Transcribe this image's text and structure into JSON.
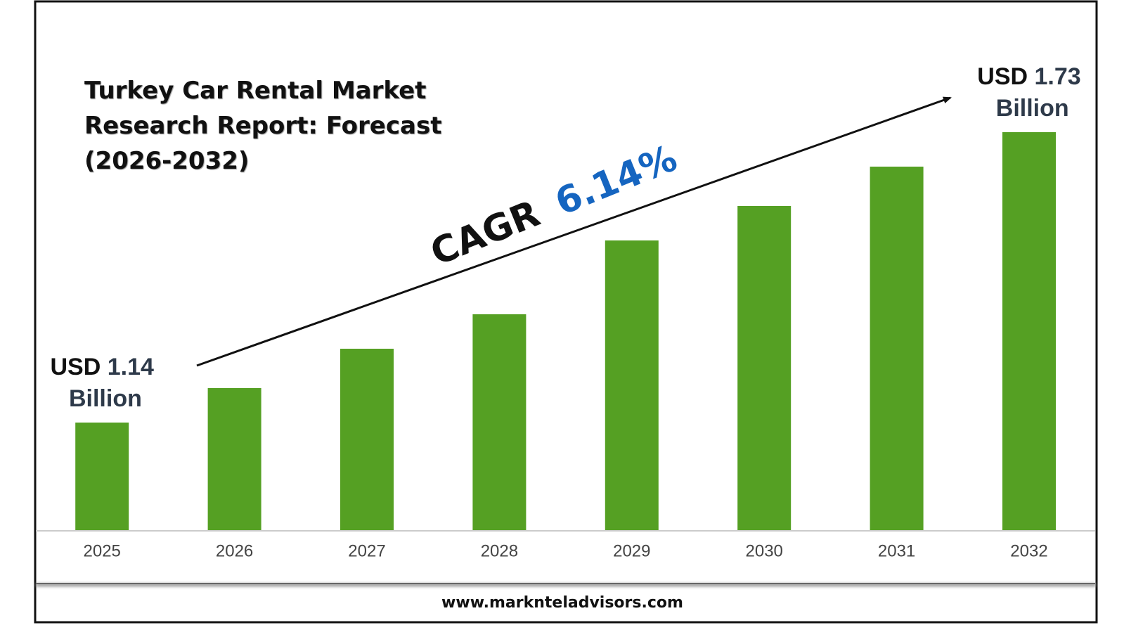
{
  "chart_data": {
    "type": "bar",
    "title": "Turkey Car Rental Market Research Report: Forecast (2026-2032)",
    "categories": [
      "2025",
      "2026",
      "2027",
      "2028",
      "2029",
      "2030",
      "2031",
      "2032"
    ],
    "values": [
      1.14,
      1.21,
      1.29,
      1.36,
      1.51,
      1.58,
      1.66,
      1.73
    ],
    "value_labels": [
      "USD 1.14 Billion",
      null,
      null,
      null,
      null,
      null,
      null,
      "USD 1.73 Billion"
    ],
    "color": "#55a023",
    "annotation": {
      "label": "CAGR",
      "value": "6.14%"
    },
    "source": "www.marknteladvisors.com"
  }
}
